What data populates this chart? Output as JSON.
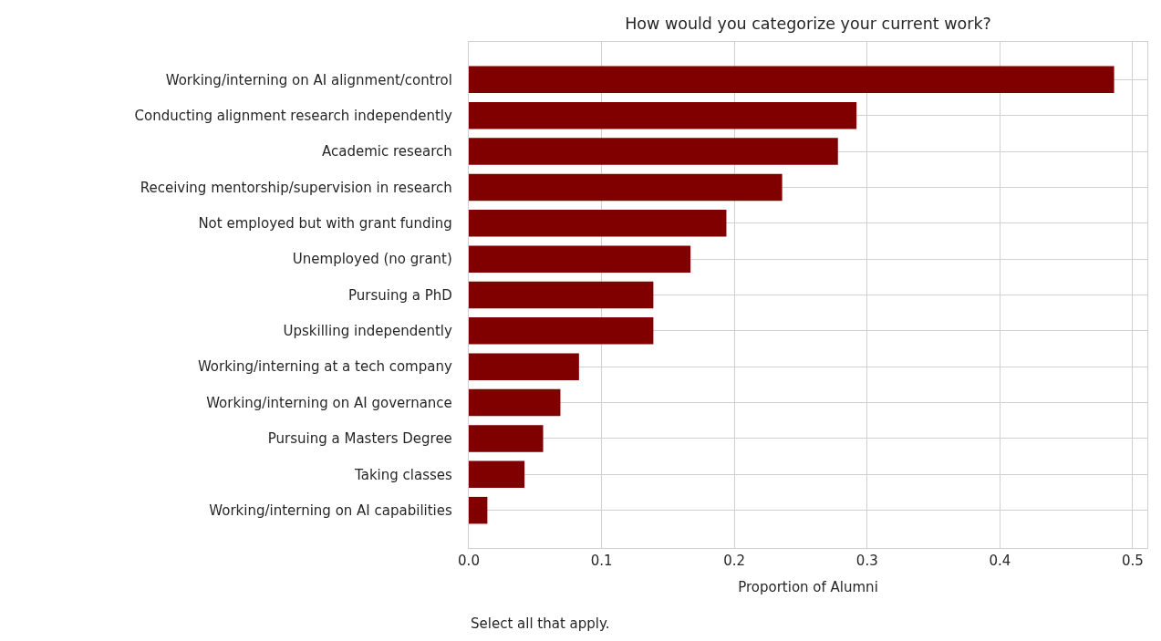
{
  "chart_data": {
    "type": "bar",
    "orientation": "horizontal",
    "title": "How would you categorize your current work?",
    "xlabel": "Proportion of Alumni",
    "categories": [
      "Working/interning on AI alignment/control",
      "Conducting alignment research independently",
      "Academic research",
      "Receiving mentorship/supervision in research",
      "Not employed but with grant funding",
      "Unemployed (no grant)",
      "Pursuing a PhD",
      "Upskilling independently",
      "Working/interning at a tech company",
      "Working/interning on AI governance",
      "Pursuing a Masters Degree",
      "Taking classes",
      "Working/interning on AI capabilities"
    ],
    "values": [
      0.486,
      0.292,
      0.278,
      0.236,
      0.194,
      0.167,
      0.139,
      0.139,
      0.083,
      0.069,
      0.056,
      0.042,
      0.014
    ],
    "color": "#800000",
    "xlim": [
      0,
      0.511
    ],
    "xticks": [
      {
        "value": 0,
        "label": "0.0"
      },
      0.1,
      0.2,
      0.3,
      0.4,
      0.5
    ],
    "grid": true,
    "annotations": [
      "Select all that apply."
    ]
  }
}
